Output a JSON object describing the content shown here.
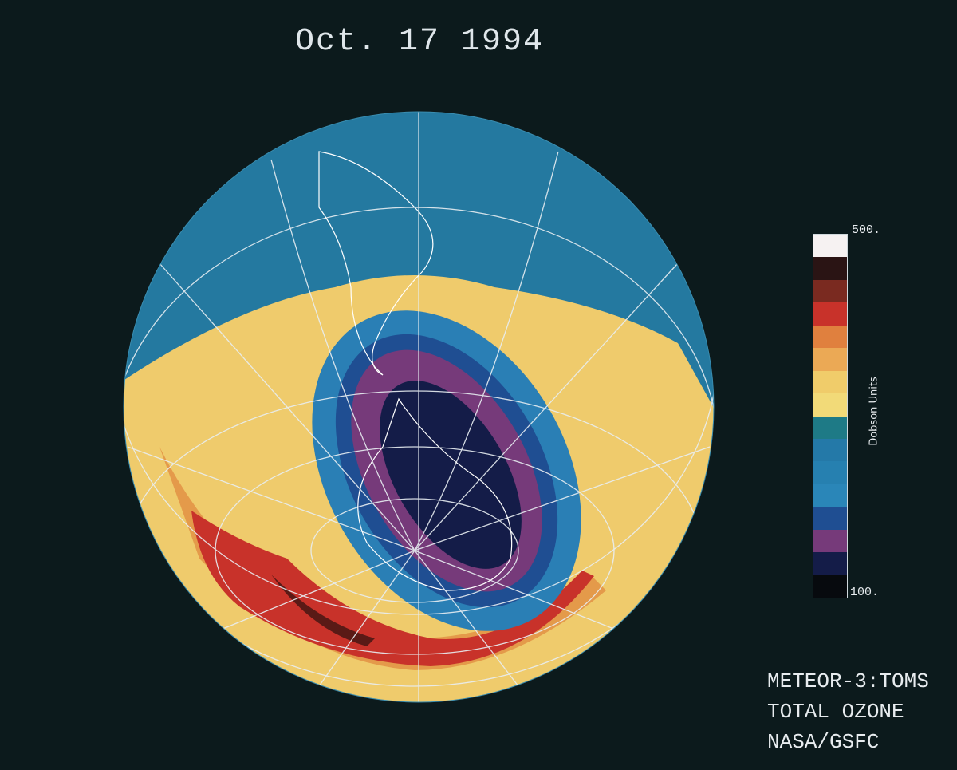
{
  "title": "Oct. 17 1994",
  "colorbar": {
    "label": "Dobson Units",
    "max_label": "500.",
    "min_label": "100.",
    "colors_top_to_bottom": [
      "#f6f2f2",
      "#2a1414",
      "#7a2a20",
      "#c8322a",
      "#e0803e",
      "#eba955",
      "#f0cc6a",
      "#f2da78",
      "#1e7a86",
      "#2479a8",
      "#2680b0",
      "#2a86b8",
      "#1f4e92",
      "#763a7a",
      "#141c48",
      "#070a0e"
    ]
  },
  "credits": [
    "METEOR-3:TOMS",
    "TOTAL OZONE",
    "NASA/GSFC"
  ],
  "colors": {
    "background": "#0c1a1c",
    "globe_ocean": "#2479a0",
    "high_ozone": "#f0cc6a",
    "hole": "#141c48"
  }
}
